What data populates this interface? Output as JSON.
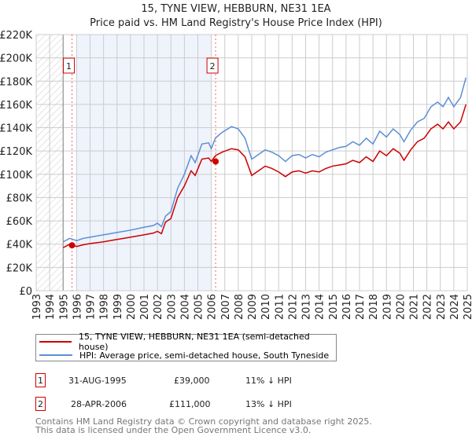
{
  "title_line1": "15, TYNE VIEW, HEBBURN, NE31 1EA",
  "title_line2": "Price paid vs. HM Land Registry's House Price Index (HPI)",
  "chart_data": {
    "type": "line",
    "title": "15, TYNE VIEW, HEBBURN, NE31 1EA — Price paid vs. HM Land Registry's House Price Index (HPI)",
    "xlim": [
      1993,
      2025
    ],
    "ylim": [
      0,
      220000
    ],
    "x_ticks": [
      "1993",
      "1994",
      "1995",
      "1996",
      "1997",
      "1998",
      "1999",
      "2000",
      "2001",
      "2002",
      "2003",
      "2004",
      "2005",
      "2006",
      "2007",
      "2008",
      "2009",
      "2010",
      "2011",
      "2012",
      "2013",
      "2014",
      "2015",
      "2016",
      "2017",
      "2018",
      "2019",
      "2020",
      "2021",
      "2022",
      "2023",
      "2024",
      "2025"
    ],
    "y_ticks": [
      {
        "v": 0,
        "label": "£0"
      },
      {
        "v": 20000,
        "label": "£20K"
      },
      {
        "v": 40000,
        "label": "£40K"
      },
      {
        "v": 60000,
        "label": "£60K"
      },
      {
        "v": 80000,
        "label": "£80K"
      },
      {
        "v": 100000,
        "label": "£100K"
      },
      {
        "v": 120000,
        "label": "£120K"
      },
      {
        "v": 140000,
        "label": "£140K"
      },
      {
        "v": 160000,
        "label": "£160K"
      },
      {
        "v": 180000,
        "label": "£180K"
      },
      {
        "v": 200000,
        "label": "£200K"
      },
      {
        "v": 220000,
        "label": "£220K"
      }
    ],
    "grid": true,
    "hatched_range": [
      1993,
      1995
    ],
    "shaded_range": [
      1996,
      2006
    ],
    "series": [
      {
        "name": "15, TYNE VIEW, HEBBURN, NE31 1EA (semi-detached house)",
        "color": "#cc0000",
        "x": [
          1995,
          1995.5,
          1996,
          1996.5,
          1997,
          1998,
          1999,
          2000,
          2001,
          2001.7,
          2002,
          2002.3,
          2002.6,
          2003,
          2003.5,
          2004,
          2004.5,
          2004.8,
          2005.3,
          2005.8,
          2006,
          2006.3,
          2006.8,
          2007.5,
          2008,
          2008.5,
          2009,
          2009.5,
          2010,
          2010.5,
          2011,
          2011.5,
          2012,
          2012.5,
          2013,
          2013.5,
          2014,
          2014.5,
          2015,
          2015.5,
          2016,
          2016.5,
          2017,
          2017.5,
          2018,
          2018.5,
          2019,
          2019.5,
          2020,
          2020.3,
          2020.8,
          2021.3,
          2021.8,
          2022.3,
          2022.8,
          2023.2,
          2023.6,
          2024,
          2024.5,
          2024.9
        ],
        "y": [
          37000,
          40000,
          38000,
          39500,
          40500,
          42000,
          44000,
          46000,
          48000,
          49500,
          51000,
          49000,
          59000,
          62000,
          80000,
          90000,
          103000,
          99000,
          113000,
          114000,
          111000,
          116000,
          119000,
          122000,
          121000,
          115000,
          99000,
          103000,
          107000,
          105000,
          102000,
          98000,
          102000,
          103000,
          101000,
          103000,
          102000,
          105000,
          107000,
          108000,
          109000,
          112000,
          110000,
          115000,
          111000,
          120000,
          116000,
          122000,
          118000,
          112000,
          121000,
          128000,
          131000,
          139000,
          143000,
          139000,
          145000,
          139000,
          145000,
          160000
        ]
      },
      {
        "name": "HPI: Average price, semi-detached house, South Tyneside",
        "color": "#5b8fd4",
        "x": [
          1995,
          1995.5,
          1996,
          1996.5,
          1997,
          1998,
          1999,
          2000,
          2001,
          2001.7,
          2002,
          2002.3,
          2002.6,
          2003,
          2003.5,
          2004,
          2004.5,
          2004.8,
          2005.3,
          2005.8,
          2006,
          2006.3,
          2006.8,
          2007.5,
          2008,
          2008.5,
          2009,
          2009.5,
          2010,
          2010.5,
          2011,
          2011.5,
          2012,
          2012.5,
          2013,
          2013.5,
          2014,
          2014.5,
          2015,
          2015.5,
          2016,
          2016.5,
          2017,
          2017.5,
          2018,
          2018.5,
          2019,
          2019.5,
          2020,
          2020.3,
          2020.8,
          2021.3,
          2021.8,
          2022.3,
          2022.8,
          2023.2,
          2023.6,
          2024,
          2024.5,
          2024.9
        ],
        "y": [
          42000,
          45000,
          43000,
          45000,
          46000,
          48000,
          50000,
          52000,
          54500,
          56000,
          58000,
          55000,
          64000,
          68000,
          88000,
          100000,
          116000,
          110000,
          126000,
          127000,
          122000,
          131000,
          136000,
          141000,
          139000,
          131000,
          113000,
          117000,
          121000,
          119000,
          116000,
          111000,
          116000,
          117000,
          114000,
          117000,
          115000,
          119000,
          121000,
          123000,
          124000,
          128000,
          125000,
          131000,
          126000,
          137000,
          132000,
          139000,
          134000,
          128000,
          138000,
          145000,
          148000,
          158000,
          162000,
          158000,
          166000,
          158000,
          166000,
          183000
        ]
      }
    ],
    "annotations": [
      {
        "label": "1",
        "x": 1995.66,
        "y": 39000
      },
      {
        "label": "2",
        "x": 2006.32,
        "y": 111000
      }
    ]
  },
  "legend": [
    {
      "label": "15, TYNE VIEW, HEBBURN, NE31 1EA (semi-detached house)",
      "color": "#cc0000"
    },
    {
      "label": "HPI: Average price, semi-detached house, South Tyneside",
      "color": "#5b8fd4"
    }
  ],
  "transactions": [
    {
      "num": "1",
      "date": "31-AUG-1995",
      "price": "£39,000",
      "hpi": "11% ↓ HPI"
    },
    {
      "num": "2",
      "date": "28-APR-2006",
      "price": "£111,000",
      "hpi": "13% ↓ HPI"
    }
  ],
  "footer_line1": "Contains HM Land Registry data © Crown copyright and database right 2025.",
  "footer_line2": "This data is licensed under the Open Government Licence v3.0."
}
